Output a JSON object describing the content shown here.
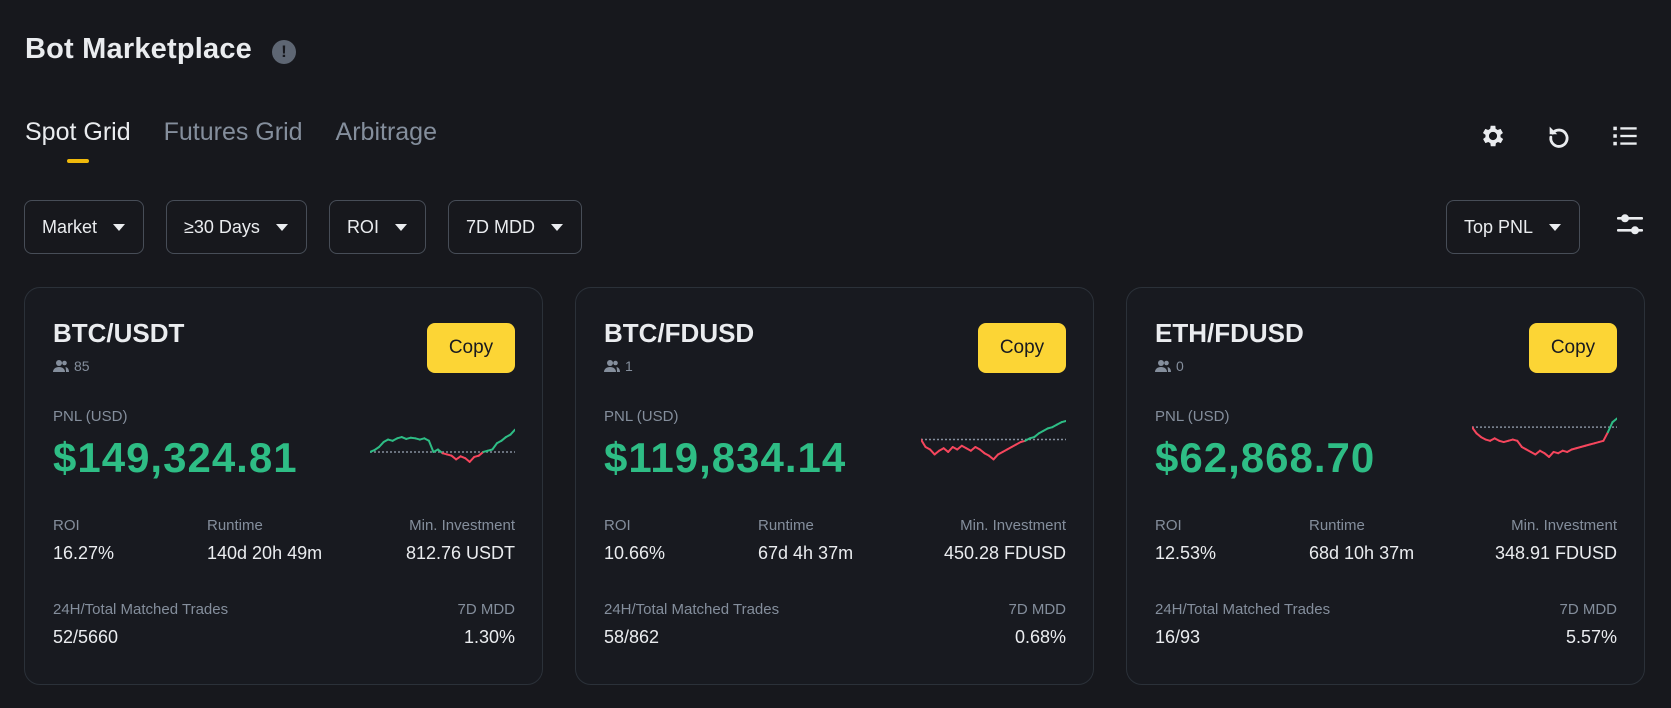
{
  "header": {
    "title": "Bot Marketplace",
    "info_icon": "info-icon"
  },
  "tabs": [
    {
      "label": "Spot Grid",
      "active": true
    },
    {
      "label": "Futures Grid",
      "active": false
    },
    {
      "label": "Arbitrage",
      "active": false
    }
  ],
  "top_icons": [
    "gear-icon",
    "refresh-icon",
    "list-icon"
  ],
  "filters": [
    {
      "label": "Market"
    },
    {
      "label": "≥30 Days"
    },
    {
      "label": "ROI"
    },
    {
      "label": "7D MDD"
    }
  ],
  "sort": {
    "label": "Top PNL"
  },
  "colors": {
    "accent": "#fcd535",
    "profit": "#2ebd85",
    "loss": "#f6465d",
    "background": "#17181d"
  },
  "labels": {
    "copy": "Copy",
    "pnl": "PNL (USD)",
    "roi": "ROI",
    "runtime": "Runtime",
    "min_investment": "Min. Investment",
    "trades": "24H/Total Matched Trades",
    "mdd": "7D MDD"
  },
  "cards": [
    {
      "pair": "BTC/USDT",
      "copiers": "85",
      "pnl": "$149,324.81",
      "roi": "16.27%",
      "runtime": "140d 20h 49m",
      "min_investment": "812.76 USDT",
      "trades": "52/5660",
      "mdd": "1.30%",
      "sparkline": [
        0.42,
        0.45,
        0.5,
        0.58,
        0.62,
        0.6,
        0.64,
        0.66,
        0.63,
        0.65,
        0.64,
        0.62,
        0.64,
        0.6,
        0.42,
        0.46,
        0.4,
        0.38,
        0.36,
        0.3,
        0.35,
        0.32,
        0.26,
        0.34,
        0.36,
        0.42,
        0.44,
        0.46,
        0.56,
        0.6,
        0.66,
        0.7,
        0.78
      ]
    },
    {
      "pair": "BTC/FDUSD",
      "copiers": "1",
      "pnl": "$119,834.14",
      "roi": "10.66%",
      "runtime": "67d 4h 37m",
      "min_investment": "450.28 FDUSD",
      "trades": "58/862",
      "mdd": "0.68%",
      "sparkline": [
        0.62,
        0.5,
        0.46,
        0.38,
        0.44,
        0.48,
        0.42,
        0.5,
        0.46,
        0.52,
        0.48,
        0.44,
        0.5,
        0.46,
        0.4,
        0.36,
        0.3,
        0.38,
        0.42,
        0.46,
        0.5,
        0.54,
        0.58,
        0.6,
        0.64,
        0.66,
        0.72,
        0.76,
        0.8,
        0.82,
        0.86,
        0.9,
        0.92
      ]
    },
    {
      "pair": "ETH/FDUSD",
      "copiers": "0",
      "pnl": "$62,868.70",
      "roi": "12.53%",
      "runtime": "68d 10h 37m",
      "min_investment": "348.91 FDUSD",
      "trades": "16/93",
      "mdd": "5.57%",
      "sparkline": [
        0.82,
        0.72,
        0.66,
        0.62,
        0.6,
        0.64,
        0.6,
        0.58,
        0.6,
        0.62,
        0.6,
        0.5,
        0.46,
        0.42,
        0.38,
        0.44,
        0.4,
        0.34,
        0.42,
        0.4,
        0.44,
        0.42,
        0.46,
        0.48,
        0.5,
        0.52,
        0.54,
        0.56,
        0.58,
        0.6,
        0.74,
        0.9,
        0.96
      ]
    }
  ]
}
